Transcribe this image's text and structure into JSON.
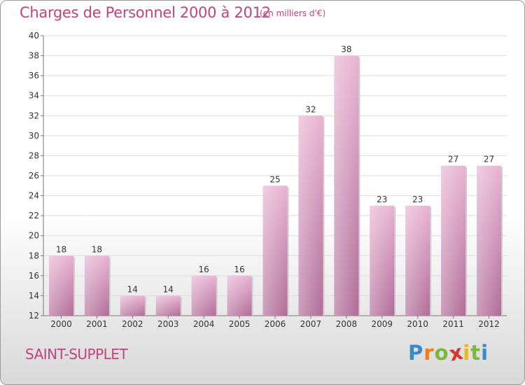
{
  "header": {
    "title": "Charges de Personnel 2000 à 2012",
    "subtitle": "(en milliers d'€)"
  },
  "footer": {
    "commune": "SAINT-SUPPLET",
    "logo_letters": [
      "P",
      "r",
      "o",
      "x",
      "i",
      "t",
      "i"
    ],
    "logo_colors": [
      "#3c8ac8",
      "#ee7d21",
      "#7cb83a",
      "#d9352f",
      "#e9b81d",
      "#7cb83a",
      "#3c8ac8"
    ]
  },
  "colors": {
    "bar_light": "#e9b3d2",
    "bar_dark": "#b16b97",
    "title": "#c0457e",
    "grid": "#dddddd",
    "axis": "#777777"
  },
  "chart_data": {
    "type": "bar",
    "categories": [
      "2000",
      "2001",
      "2002",
      "2003",
      "2004",
      "2005",
      "2006",
      "2007",
      "2008",
      "2009",
      "2010",
      "2011",
      "2012"
    ],
    "values": [
      18,
      18,
      14,
      14,
      16,
      16,
      25,
      32,
      38,
      23,
      23,
      27,
      27
    ],
    "ylim": [
      12,
      40
    ],
    "yticks": [
      12,
      14,
      16,
      18,
      20,
      22,
      24,
      26,
      28,
      30,
      32,
      34,
      36,
      38,
      40
    ],
    "grid": true,
    "data_labels": true
  }
}
